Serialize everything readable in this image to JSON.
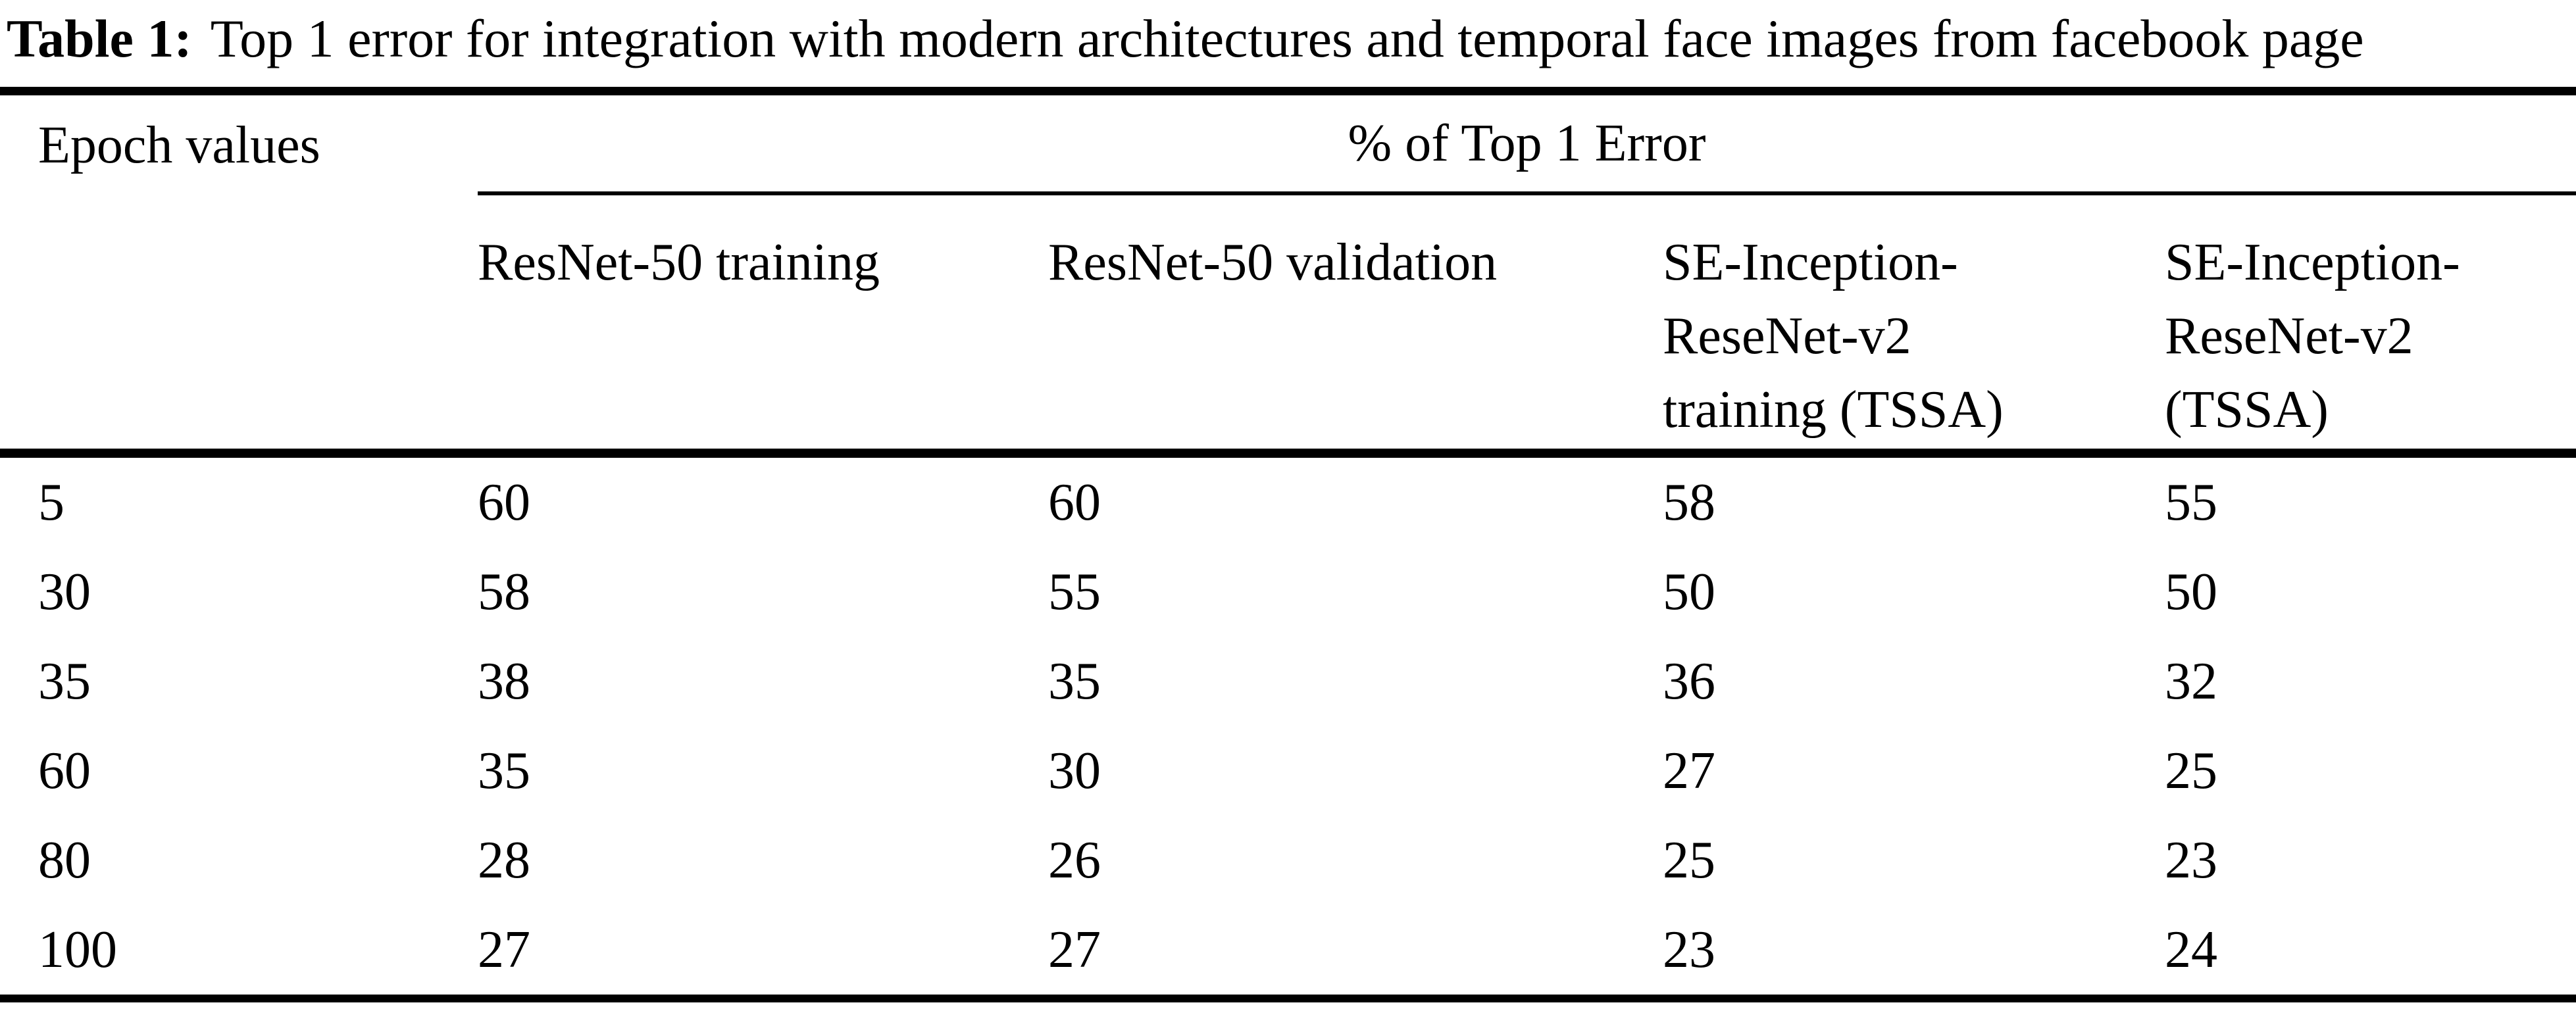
{
  "caption": {
    "label": "Table 1:",
    "text": "Top 1 error for integration with modern architectures and temporal face images from facebook page"
  },
  "table": {
    "col1_header": "Epoch values",
    "span_header": "% of Top 1 Error",
    "columns": [
      "ResNet-50 training",
      "ResNet-50 validation",
      "SE-Inception-\nReseNet-v2\ntraining (TSSA)",
      "SE-Inception-\nReseNet-v2\n (TSSA)"
    ],
    "rows": [
      {
        "epoch": "5",
        "values": [
          "60",
          "60",
          "58",
          "55"
        ]
      },
      {
        "epoch": "30",
        "values": [
          "58",
          "55",
          "50",
          "50"
        ]
      },
      {
        "epoch": "35",
        "values": [
          "38",
          "35",
          "36",
          "32"
        ]
      },
      {
        "epoch": "60",
        "values": [
          "35",
          "30",
          "27",
          "25"
        ]
      },
      {
        "epoch": "80",
        "values": [
          "28",
          "26",
          "25",
          "23"
        ]
      },
      {
        "epoch": "100",
        "values": [
          "27",
          "27",
          "23",
          "24"
        ]
      }
    ]
  }
}
